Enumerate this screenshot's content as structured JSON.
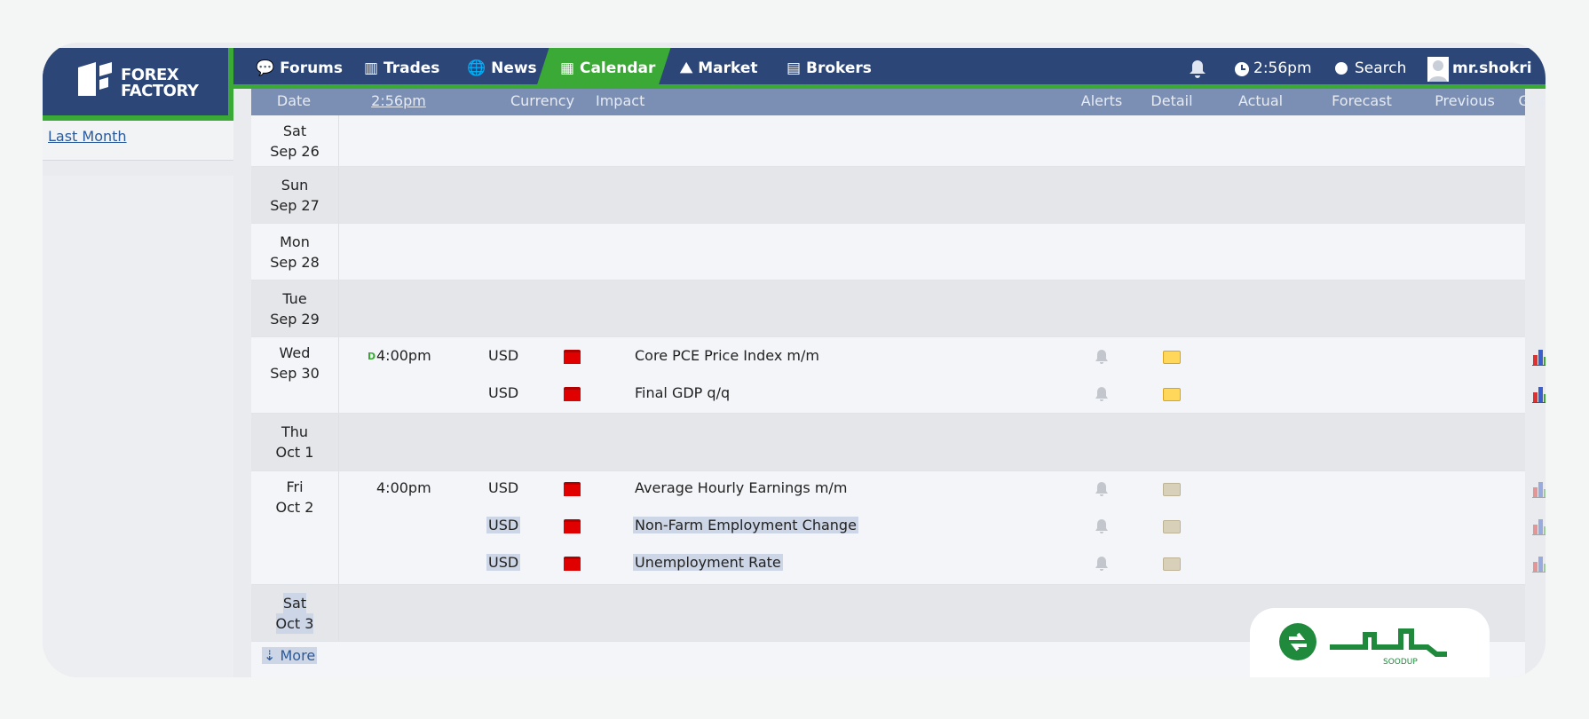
{
  "logo": "FOREX FACTORY",
  "nav": [
    "Forums",
    "Trades",
    "News",
    "Calendar",
    "Market",
    "Brokers"
  ],
  "nav_right": {
    "time": "2:56pm",
    "search": "Search",
    "user": "mr.shokri"
  },
  "sidebar": {
    "link": "Last Month"
  },
  "table": {
    "headers": [
      "Date",
      "2:56pm",
      "Currency",
      "Impact",
      "Alerts",
      "Detail",
      "Actual",
      "Forecast",
      "Previous",
      "Graph"
    ],
    "days": [
      {
        "day": "Sat",
        "date": "Sep 26",
        "events": []
      },
      {
        "day": "Sun",
        "date": "Sep 27",
        "events": []
      },
      {
        "day": "Mon",
        "date": "Sep 28",
        "events": []
      },
      {
        "day": "Tue",
        "date": "Sep 29",
        "events": []
      },
      {
        "day": "Wed",
        "date": "Sep 30",
        "events": [
          {
            "flag": "D",
            "time": "4:00pm",
            "currency": "USD",
            "event": "Core PCE Price Index m/m"
          },
          {
            "currency": "USD",
            "event": "Final GDP q/q"
          }
        ]
      },
      {
        "day": "Thu",
        "date": "Oct 1",
        "events": []
      },
      {
        "day": "Fri",
        "date": "Oct 2",
        "events": [
          {
            "time": "4:00pm",
            "currency": "USD",
            "event": "Average Hourly Earnings m/m",
            "faded": true
          },
          {
            "currency": "USD",
            "event": "Non-Farm Employment Change",
            "faded": true,
            "highlight": true
          },
          {
            "currency": "USD",
            "event": "Unemployment Rate",
            "faded": true,
            "highlight": true
          }
        ]
      },
      {
        "day": "Sat",
        "date": "Oct 3",
        "events": [],
        "highlight": true
      }
    ],
    "more": "More"
  },
  "watermark": "SOODUP"
}
